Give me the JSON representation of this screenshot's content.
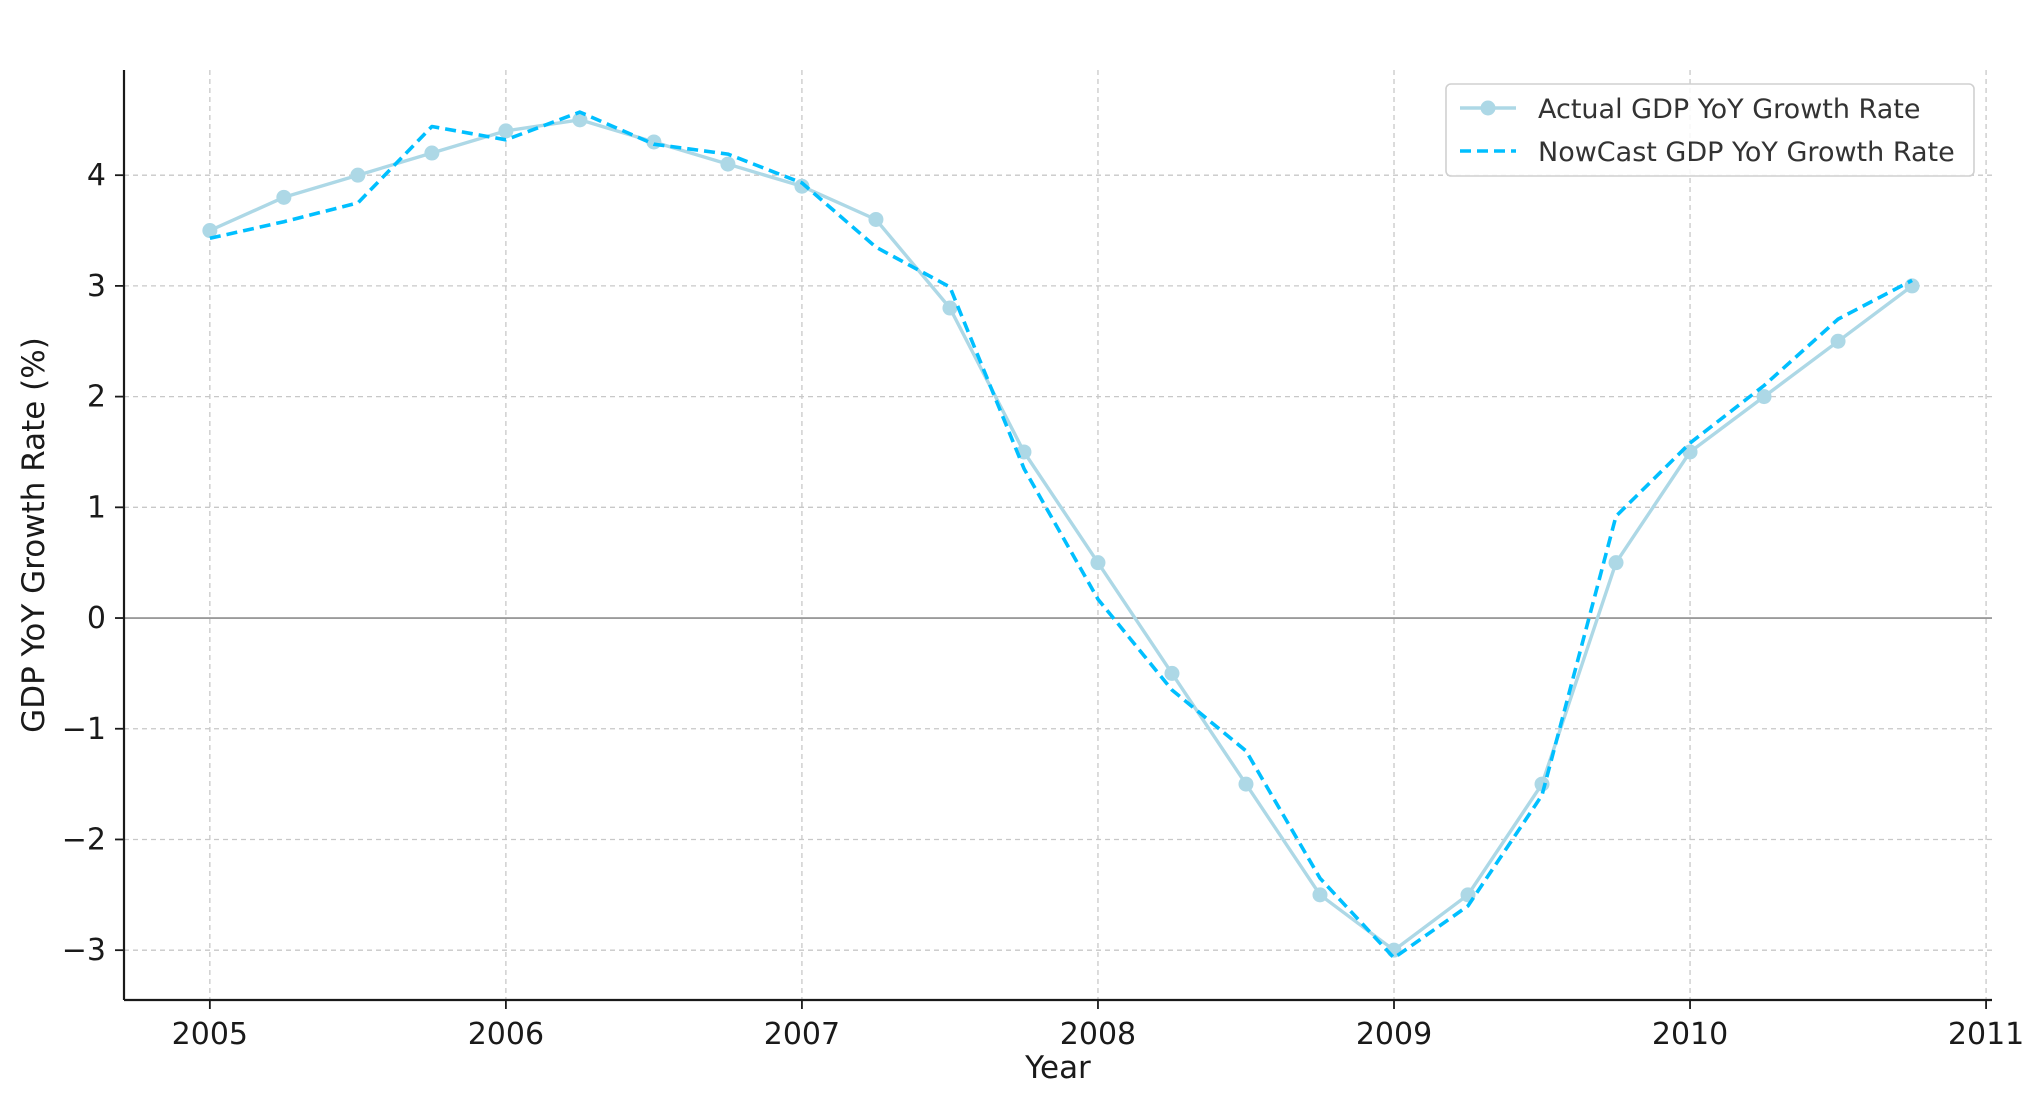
{
  "chart_data": {
    "type": "line",
    "title": "",
    "xlabel": "Year",
    "ylabel": "GDP YoY Growth Rate (%)",
    "xlim": [
      2004.71,
      2011.02
    ],
    "ylim": [
      -3.45,
      4.95
    ],
    "x_ticks": [
      {
        "value": 2005,
        "label": "2005"
      },
      {
        "value": 2006,
        "label": "2006"
      },
      {
        "value": 2007,
        "label": "2007"
      },
      {
        "value": 2008,
        "label": "2008"
      },
      {
        "value": 2009,
        "label": "2009"
      },
      {
        "value": 2010,
        "label": "2010"
      },
      {
        "value": 2011,
        "label": "2011"
      }
    ],
    "y_ticks": [
      {
        "value": 4,
        "label": "4"
      },
      {
        "value": 3,
        "label": "3"
      },
      {
        "value": 2,
        "label": "2"
      },
      {
        "value": 1,
        "label": "1"
      },
      {
        "value": 0,
        "label": "0"
      },
      {
        "value": -1,
        "label": "−1"
      },
      {
        "value": -2,
        "label": "−2"
      },
      {
        "value": -3,
        "label": "−3"
      }
    ],
    "grid": true,
    "zero_line": true,
    "legend_position": "top-right",
    "x": [
      2005.0,
      2005.25,
      2005.5,
      2005.75,
      2006.0,
      2006.25,
      2006.5,
      2006.75,
      2007.0,
      2007.25,
      2007.5,
      2007.75,
      2008.0,
      2008.25,
      2008.5,
      2008.75,
      2009.0,
      2009.25,
      2009.5,
      2009.75,
      2010.0,
      2010.25,
      2010.5,
      2010.75
    ],
    "series": [
      {
        "name": "Actual GDP YoY Growth Rate",
        "color": "#add8e6",
        "style": "solid",
        "marker": "circle",
        "values": [
          3.5,
          3.8,
          4.0,
          4.2,
          4.4,
          4.5,
          4.3,
          4.1,
          3.9,
          3.6,
          2.8,
          1.5,
          0.5,
          -0.5,
          -1.5,
          -2.5,
          -3.0,
          -2.5,
          -1.5,
          0.5,
          1.5,
          2.0,
          2.5,
          3.0
        ]
      },
      {
        "name": "NowCast GDP YoY Growth Rate",
        "color": "#00bfff",
        "style": "dashed",
        "marker": "none",
        "values": [
          3.43,
          3.58,
          3.75,
          4.44,
          4.32,
          4.57,
          4.28,
          4.19,
          3.93,
          3.35,
          2.99,
          1.35,
          0.17,
          -0.65,
          -1.2,
          -2.35,
          -3.07,
          -2.6,
          -1.6,
          0.92,
          1.58,
          2.1,
          2.7,
          3.05
        ]
      }
    ]
  }
}
